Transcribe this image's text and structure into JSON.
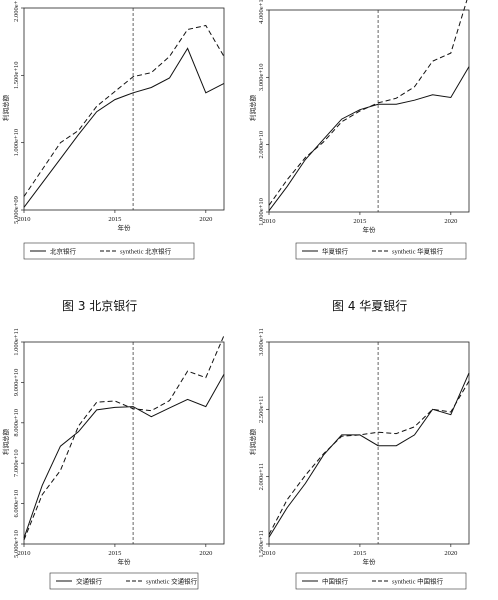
{
  "captions": {
    "beijing": "图 3  北京银行",
    "huaxia": "图 4  华夏银行"
  },
  "chart_data": [
    {
      "type": "line",
      "xlabel": "年份",
      "ylabel": "利润总额",
      "treatment_line_x": 2016,
      "xlim": [
        2010,
        2021
      ],
      "ylim": [
        5000000000,
        20000000000
      ],
      "xticks": [
        2010,
        2015,
        2020
      ],
      "xtick_labels": [
        "2010",
        "2015",
        "2020"
      ],
      "yticks": [
        5000000000,
        10000000000,
        15000000000,
        20000000000
      ],
      "ytick_labels": [
        "5.000e+09",
        "1.000e+10",
        "1.500e+10",
        "2.000e+10"
      ],
      "legend_position": "bottom",
      "series": [
        {
          "name": "北京银行",
          "style": "solid",
          "x": [
            2010,
            2011,
            2012,
            2013,
            2014,
            2015,
            2016,
            2017,
            2018,
            2019,
            2020,
            2021
          ],
          "values": [
            5200000000,
            7000000000,
            8800000000,
            10600000000,
            12300000000,
            13200000000,
            13700000000,
            14100000000,
            14800000000,
            17000000000,
            13700000000,
            14400000000
          ]
        },
        {
          "name": "synthetic 北京银行",
          "style": "dashed",
          "x": [
            2010,
            2011,
            2012,
            2013,
            2014,
            2015,
            2016,
            2017,
            2018,
            2019,
            2020,
            2021
          ],
          "values": [
            6000000000,
            8000000000,
            10000000000,
            10900000000,
            12700000000,
            13800000000,
            14900000000,
            15200000000,
            16400000000,
            18400000000,
            18700000000,
            16400000000
          ]
        }
      ]
    },
    {
      "type": "line",
      "xlabel": "年份",
      "ylabel": "利润总额",
      "treatment_line_x": 2016,
      "xlim": [
        2010,
        2021
      ],
      "ylim": [
        10000000000,
        40000000000
      ],
      "xticks": [
        2010,
        2015,
        2020
      ],
      "xtick_labels": [
        "2010",
        "2015",
        "2020"
      ],
      "yticks": [
        10000000000,
        20000000000,
        30000000000,
        40000000000
      ],
      "ytick_labels": [
        "1.000e+10",
        "2.000e+10",
        "3.000e+10",
        "4.000e+10"
      ],
      "legend_position": "bottom",
      "series": [
        {
          "name": "华夏银行",
          "style": "solid",
          "x": [
            2010,
            2011,
            2012,
            2013,
            2014,
            2015,
            2016,
            2017,
            2018,
            2019,
            2020,
            2021
          ],
          "values": [
            10200000000,
            13800000000,
            17800000000,
            20800000000,
            23800000000,
            25200000000,
            26000000000,
            26000000000,
            26600000000,
            27400000000,
            27000000000,
            31600000000
          ]
        },
        {
          "name": "synthetic 华夏银行",
          "style": "dashed",
          "x": [
            2010,
            2011,
            2012,
            2013,
            2014,
            2015,
            2016,
            2017,
            2018,
            2019,
            2020,
            2021
          ],
          "values": [
            11000000000,
            14800000000,
            18100000000,
            20400000000,
            23400000000,
            25000000000,
            26200000000,
            26900000000,
            28600000000,
            32400000000,
            33600000000,
            42500000000
          ]
        }
      ]
    },
    {
      "type": "line",
      "xlabel": "年份",
      "ylabel": "利润总额",
      "treatment_line_x": 2016,
      "xlim": [
        2010,
        2021
      ],
      "ylim": [
        50000000000,
        100000000000
      ],
      "xticks": [
        2010,
        2015,
        2020
      ],
      "xtick_labels": [
        "2010",
        "2015",
        "2020"
      ],
      "yticks": [
        50000000000,
        60000000000,
        70000000000,
        80000000000,
        90000000000,
        100000000000
      ],
      "ytick_labels": [
        "5.000e+10",
        "6.000e+10",
        "7.000e+10",
        "8.000e+10",
        "9.000e+10",
        "1.000e+11"
      ],
      "legend_position": "bottom",
      "series": [
        {
          "name": "交通银行",
          "style": "solid",
          "x": [
            2010,
            2011,
            2012,
            2013,
            2014,
            2015,
            2016,
            2017,
            2018,
            2019,
            2020,
            2021
          ],
          "values": [
            51500000000,
            64500000000,
            74200000000,
            77800000000,
            83200000000,
            83800000000,
            84000000000,
            81500000000,
            83700000000,
            85800000000,
            84000000000,
            92000000000
          ]
        },
        {
          "name": "synthetic 交通银行",
          "style": "dashed",
          "x": [
            2010,
            2011,
            2012,
            2013,
            2014,
            2015,
            2016,
            2017,
            2018,
            2019,
            2020,
            2021
          ],
          "values": [
            51000000000,
            62200000000,
            68200000000,
            79200000000,
            85100000000,
            85400000000,
            83500000000,
            83000000000,
            85500000000,
            92800000000,
            91200000000,
            101600000000
          ]
        }
      ]
    },
    {
      "type": "line",
      "xlabel": "年份",
      "ylabel": "利润总额",
      "treatment_line_x": 2016,
      "xlim": [
        2010,
        2021
      ],
      "ylim": [
        150000000000,
        300000000000
      ],
      "xticks": [
        2010,
        2015,
        2020
      ],
      "xtick_labels": [
        "2010",
        "2015",
        "2020"
      ],
      "yticks": [
        150000000000,
        200000000000,
        250000000000,
        300000000000
      ],
      "ytick_labels": [
        "1.500e+11",
        "2.000e+11",
        "2.500e+11",
        "3.000e+11"
      ],
      "legend_position": "bottom",
      "series": [
        {
          "name": "中国银行",
          "style": "solid",
          "x": [
            2010,
            2011,
            2012,
            2013,
            2014,
            2015,
            2016,
            2017,
            2018,
            2019,
            2020,
            2021
          ],
          "values": [
            155000000000,
            177000000000,
            195000000000,
            216000000000,
            231000000000,
            231000000000,
            223000000000,
            223000000000,
            231000000000,
            250000000000,
            246000000000,
            277000000000
          ]
        },
        {
          "name": "synthetic 中国银行",
          "style": "dashed",
          "x": [
            2010,
            2011,
            2012,
            2013,
            2014,
            2015,
            2016,
            2017,
            2018,
            2019,
            2020,
            2021
          ],
          "values": [
            157000000000,
            183000000000,
            201000000000,
            217000000000,
            230000000000,
            231000000000,
            233000000000,
            232000000000,
            237000000000,
            250000000000,
            248000000000,
            271000000000
          ]
        }
      ]
    }
  ]
}
